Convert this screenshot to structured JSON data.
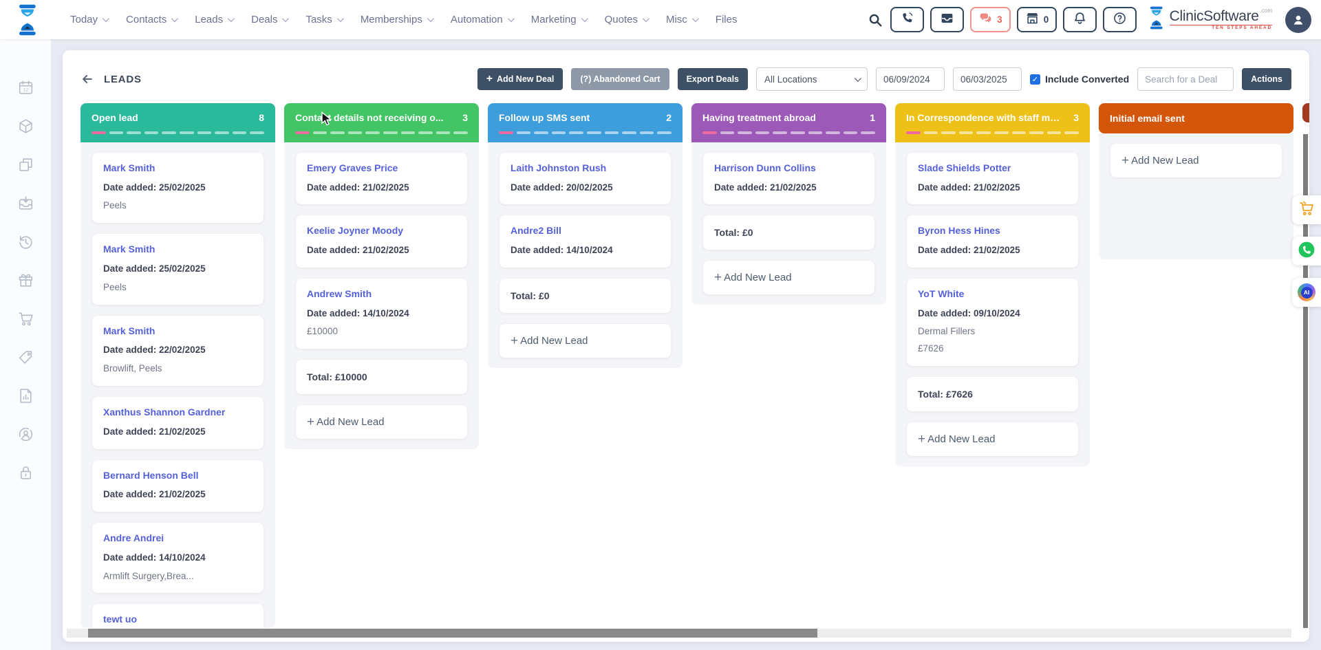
{
  "topbar": {
    "nav": [
      {
        "label": "Today",
        "dropdown": true
      },
      {
        "label": "Contacts",
        "dropdown": true
      },
      {
        "label": "Leads",
        "dropdown": true
      },
      {
        "label": "Deals",
        "dropdown": true
      },
      {
        "label": "Tasks",
        "dropdown": true
      },
      {
        "label": "Memberships",
        "dropdown": true
      },
      {
        "label": "Automation",
        "dropdown": true
      },
      {
        "label": "Marketing",
        "dropdown": true
      },
      {
        "label": "Quotes",
        "dropdown": true
      },
      {
        "label": "Misc",
        "dropdown": true
      },
      {
        "label": "Files",
        "dropdown": false
      }
    ],
    "actions": [
      {
        "icon": "phone-icon",
        "style": "dark",
        "badge": null
      },
      {
        "icon": "inbox-icon",
        "style": "dark",
        "badge": null
      },
      {
        "icon": "chat-icon",
        "style": "red",
        "badge": "3"
      },
      {
        "icon": "store-icon",
        "style": "dark",
        "badge": "0"
      },
      {
        "icon": "bell-icon",
        "style": "dark",
        "badge": null
      },
      {
        "icon": "help-icon",
        "style": "dark",
        "badge": null
      }
    ],
    "brand": {
      "name": "ClinicSoftware",
      "suffix": ".com",
      "tagline": "TEN STEPS AHEAD"
    }
  },
  "page": {
    "title": "LEADS",
    "toolbar": {
      "add_new_deal": "Add New Deal",
      "abandoned_cart": "(?) Abandoned Cart",
      "export_deals": "Export Deals",
      "location_filter": "All Locations",
      "date_from": "06/09/2024",
      "date_to": "06/03/2025",
      "include_converted": {
        "label": "Include Converted",
        "checked": true
      },
      "search_placeholder": "Search for a Deal",
      "actions": "Actions"
    }
  },
  "board": {
    "date_added_label": "Date added:",
    "total_label": "Total:",
    "add_lead_label": "Add New Lead",
    "dash_active_color": "#ef6a9e",
    "dash_inactive_color": "rgba(255,255,255,0.55)",
    "dash_count": 10,
    "columns": [
      {
        "title": "Open lead",
        "count": "8",
        "color": "#2bb99b",
        "dashes": true,
        "stretch": true,
        "cards": [
          {
            "type": "lead",
            "name": "Mark Smith",
            "date": "25/02/2025",
            "lines": [
              "Peels"
            ]
          },
          {
            "type": "lead",
            "name": "Mark Smith",
            "date": "25/02/2025",
            "lines": [
              "Peels"
            ]
          },
          {
            "type": "lead",
            "name": "Mark Smith",
            "date": "22/02/2025",
            "lines": [
              "Browlift, Peels"
            ]
          },
          {
            "type": "lead",
            "name": "Xanthus Shannon Gardner",
            "date": "21/02/2025",
            "lines": []
          },
          {
            "type": "lead",
            "name": "Bernard Henson Bell",
            "date": "21/02/2025",
            "lines": []
          },
          {
            "type": "lead",
            "name": "Andre Andrei",
            "date": "14/10/2024",
            "lines": [
              "Armlift Surgery,Brea..."
            ]
          },
          {
            "type": "lead",
            "name": "tewt uo",
            "date": null,
            "lines": []
          }
        ]
      },
      {
        "title": "Contact details not receiving o...",
        "count": "3",
        "color": "#43c465",
        "dashes": true,
        "cards": [
          {
            "type": "lead",
            "name": "Emery Graves Price",
            "date": "21/02/2025",
            "lines": []
          },
          {
            "type": "lead",
            "name": "Keelie Joyner Moody",
            "date": "21/02/2025",
            "lines": []
          },
          {
            "type": "lead",
            "name": "Andrew Smith",
            "date": "14/10/2024",
            "lines": [
              "£10000"
            ]
          },
          {
            "type": "total",
            "value": "£10000"
          },
          {
            "type": "add"
          }
        ]
      },
      {
        "title": "Follow up SMS sent",
        "count": "2",
        "color": "#3e9edb",
        "dashes": true,
        "cards": [
          {
            "type": "lead",
            "name": "Laith Johnston Rush",
            "date": "20/02/2025",
            "lines": []
          },
          {
            "type": "lead",
            "name": "Andre2 Bill",
            "date": "14/10/2024",
            "lines": []
          },
          {
            "type": "total",
            "value": "£0"
          },
          {
            "type": "add"
          }
        ]
      },
      {
        "title": "Having treatment abroad",
        "count": "1",
        "color": "#9c59b8",
        "dashes": true,
        "cards": [
          {
            "type": "lead",
            "name": "Harrison Dunn Collins",
            "date": "21/02/2025",
            "lines": []
          },
          {
            "type": "total",
            "value": "£0"
          },
          {
            "type": "add"
          }
        ]
      },
      {
        "title": "In Correspondence with staff me...",
        "count": "3",
        "color": "#eec119",
        "dashes": true,
        "cards": [
          {
            "type": "lead",
            "name": "Slade Shields Potter",
            "date": "21/02/2025",
            "lines": []
          },
          {
            "type": "lead",
            "name": "Byron Hess Hines",
            "date": "21/02/2025",
            "lines": []
          },
          {
            "type": "lead",
            "name": "YoT White",
            "date": "09/10/2024",
            "lines": [
              "Dermal Fillers",
              "£7626"
            ]
          },
          {
            "type": "total",
            "value": "£7626"
          },
          {
            "type": "add"
          }
        ]
      },
      {
        "title": "Initial email sent",
        "count": null,
        "color": "#d4560b",
        "dashes": false,
        "min_body": 183,
        "cards": [
          {
            "type": "add"
          }
        ]
      },
      {
        "title": "",
        "count": null,
        "color": "#a23a22",
        "dashes": false,
        "partial": true,
        "cards": []
      }
    ]
  },
  "sidebar": {
    "icons": [
      "calendar-12-icon",
      "package-icon",
      "copy-icon",
      "tray-archive-icon",
      "history-icon",
      "gift-icon",
      "cart-icon",
      "tag-icon",
      "report-icon",
      "user-badge-icon",
      "lock-icon"
    ]
  },
  "floating": [
    {
      "icon": "cart-orange-icon",
      "label": ""
    },
    {
      "icon": "phone-green-icon",
      "label": ""
    },
    {
      "icon": "ai-icon",
      "label": "AI"
    }
  ]
}
